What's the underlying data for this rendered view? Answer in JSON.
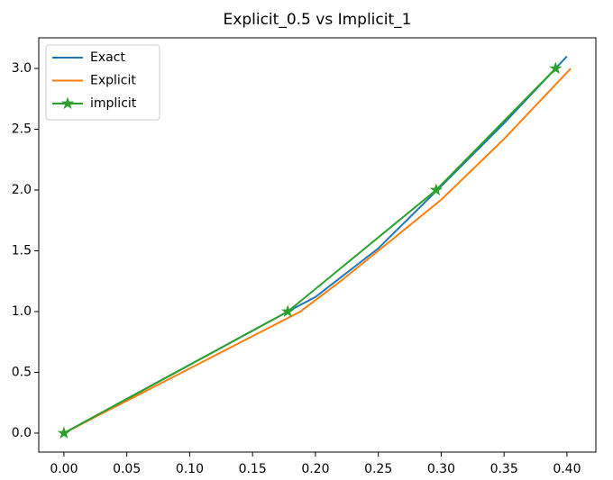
{
  "chart_data": {
    "type": "line",
    "title": "Explicit_0.5 vs Implicit_1",
    "xlim": [
      -0.02,
      0.423
    ],
    "ylim": [
      -0.156,
      3.252
    ],
    "xticks": [
      {
        "value": 0,
        "label": "0.00"
      },
      {
        "value": 0.05,
        "label": "0.05"
      },
      {
        "value": 0.1,
        "label": "0.10"
      },
      {
        "value": 0.15,
        "label": "0.15"
      },
      {
        "value": 0.2,
        "label": "0.20"
      },
      {
        "value": 0.25,
        "label": "0.25"
      },
      {
        "value": 0.3,
        "label": "0.30"
      },
      {
        "value": 0.35,
        "label": "0.35"
      },
      {
        "value": 0.4,
        "label": "0.40"
      }
    ],
    "yticks": [
      {
        "value": 0,
        "label": "0.0"
      },
      {
        "value": 0.5,
        "label": "0.5"
      },
      {
        "value": 1,
        "label": "1.0"
      },
      {
        "value": 1.5,
        "label": "1.5"
      },
      {
        "value": 2,
        "label": "2.0"
      },
      {
        "value": 2.5,
        "label": "2.5"
      },
      {
        "value": 3,
        "label": "3.0"
      }
    ],
    "legend": "upper left",
    "series": [
      {
        "name": "Exact",
        "color": "#1f77b4",
        "x": [
          0,
          0.178,
          0.2,
          0.25,
          0.295,
          0.35,
          0.4
        ],
        "values": [
          0,
          1,
          1.12,
          1.52,
          1.98,
          2.55,
          3.1
        ]
      },
      {
        "name": "Explicit",
        "color": "#ff7f0e",
        "x": [
          0,
          0.188,
          0.22,
          0.25,
          0.3,
          0.35,
          0.403
        ],
        "values": [
          0,
          1,
          1.25,
          1.5,
          1.92,
          2.42,
          3
        ]
      },
      {
        "name": "implicit",
        "color": "#2ca02c",
        "marker": "*",
        "x": [
          0,
          0.178,
          0.296,
          0.391
        ],
        "values": [
          0,
          1,
          2,
          3
        ]
      }
    ]
  }
}
